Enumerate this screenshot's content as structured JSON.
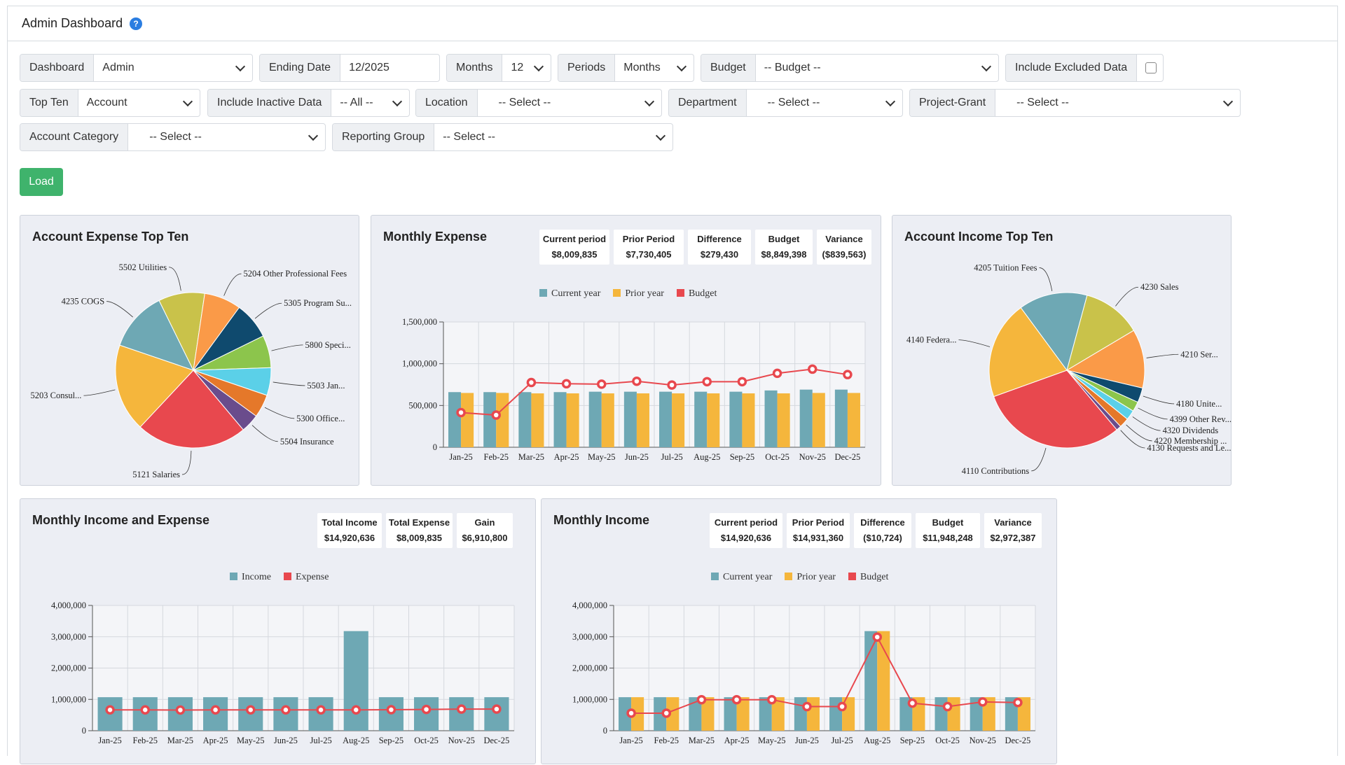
{
  "header": {
    "title": "Admin Dashboard",
    "help_icon": "?"
  },
  "filters": {
    "dashboard": {
      "label": "Dashboard",
      "value": "Admin"
    },
    "ending_date": {
      "label": "Ending Date",
      "value": "12/2025"
    },
    "months": {
      "label": "Months",
      "value": "12"
    },
    "periods": {
      "label": "Periods",
      "value": "Months"
    },
    "budget": {
      "label": "Budget",
      "value": "-- Budget --"
    },
    "include_excluded": {
      "label": "Include Excluded Data",
      "checked": false
    },
    "top_ten": {
      "label": "Top Ten",
      "value": "Account"
    },
    "include_inactive": {
      "label": "Include Inactive Data",
      "value": "-- All --"
    },
    "location": {
      "label": "Location",
      "value": "-- Select --"
    },
    "department": {
      "label": "Department",
      "value": "-- Select --"
    },
    "project_grant": {
      "label": "Project-Grant",
      "value": "-- Select --"
    },
    "account_category": {
      "label": "Account Category",
      "value": "-- Select --"
    },
    "reporting_group": {
      "label": "Reporting Group",
      "value": "-- Select --"
    }
  },
  "load_button": "Load",
  "colors": {
    "teal": "#6ea8b4",
    "orange": "#f5b63c",
    "red": "#e8484e",
    "green_button": "#3fb36c"
  },
  "cards": {
    "expense_top_ten": {
      "title": "Account Expense Top Ten"
    },
    "monthly_expense": {
      "title": "Monthly Expense",
      "stats": [
        {
          "label": "Current period",
          "value": "$8,009,835"
        },
        {
          "label": "Prior Period",
          "value": "$7,730,405"
        },
        {
          "label": "Difference",
          "value": "$279,430"
        },
        {
          "label": "Budget",
          "value": "$8,849,398"
        },
        {
          "label": "Variance",
          "value": "($839,563)"
        }
      ],
      "legend": [
        "Current year",
        "Prior year",
        "Budget"
      ]
    },
    "income_top_ten": {
      "title": "Account Income Top Ten"
    },
    "income_and_expense": {
      "title": "Monthly Income and Expense",
      "stats": [
        {
          "label": "Total Income",
          "value": "$14,920,636"
        },
        {
          "label": "Total Expense",
          "value": "$8,009,835"
        },
        {
          "label": "Gain",
          "value": "$6,910,800"
        }
      ],
      "legend": [
        "Income",
        "Expense"
      ]
    },
    "monthly_income": {
      "title": "Monthly Income",
      "stats": [
        {
          "label": "Current period",
          "value": "$14,920,636"
        },
        {
          "label": "Prior Period",
          "value": "$14,931,360"
        },
        {
          "label": "Difference",
          "value": "($10,724)"
        },
        {
          "label": "Budget",
          "value": "$11,948,248"
        },
        {
          "label": "Variance",
          "value": "$2,972,387"
        }
      ],
      "legend": [
        "Current year",
        "Prior year",
        "Budget"
      ]
    }
  },
  "chart_data": [
    {
      "id": "expense_pie",
      "type": "pie",
      "labels": [
        "5121 Salaries",
        "5203 Consul...",
        "4235 COGS",
        "5502 Utilities",
        "5204 Other Professional Fees",
        "5305 Program Su...",
        "5800 Speci...",
        "5503 Jan...",
        "5300 Office...",
        "5504 Insurance"
      ],
      "values": [
        24,
        19,
        13,
        10,
        8,
        8,
        7,
        6,
        5,
        4
      ],
      "colors": [
        "#e8484e",
        "#f5b63c",
        "#6ea8b4",
        "#c9c24a",
        "#fa9a48",
        "#0f4a6e",
        "#8cc54c",
        "#5bd0e8",
        "#e5782a",
        "#6a4c8c"
      ]
    },
    {
      "id": "monthly_expense",
      "type": "bar",
      "categories": [
        "Jan-25",
        "Feb-25",
        "Mar-25",
        "Apr-25",
        "May-25",
        "Jun-25",
        "Jul-25",
        "Aug-25",
        "Sep-25",
        "Oct-25",
        "Nov-25",
        "Dec-25"
      ],
      "series": [
        {
          "name": "Current year",
          "values": [
            660000,
            660000,
            660000,
            660000,
            665000,
            665000,
            665000,
            665000,
            665000,
            680000,
            690000,
            690000
          ]
        },
        {
          "name": "Prior year",
          "values": [
            650000,
            650000,
            645000,
            645000,
            645000,
            645000,
            645000,
            645000,
            645000,
            645000,
            650000,
            650000
          ]
        },
        {
          "name": "Budget",
          "type": "line",
          "values": [
            415000,
            385000,
            775000,
            760000,
            755000,
            790000,
            745000,
            785000,
            785000,
            885000,
            935000,
            870000
          ]
        }
      ],
      "yticks": [
        "0",
        "500,000",
        "1,000,000",
        "1,500,000"
      ],
      "ylim": [
        0,
        1500000
      ]
    },
    {
      "id": "income_pie",
      "type": "pie",
      "labels": [
        "4110 Contributions",
        "4140 Federa...",
        "4205 Tuition Fees",
        "4230 Sales",
        "4210 Ser...",
        "4180 Unite...",
        "4399 Other Rev...",
        "4320 Dividends",
        "4220 Membership ...",
        "4130 Requests and Le..."
      ],
      "values": [
        30,
        20,
        14,
        12,
        12,
        3,
        2,
        2,
        2,
        1
      ],
      "colors": [
        "#e8484e",
        "#f5b63c",
        "#6ea8b4",
        "#c9c24a",
        "#fa9a48",
        "#0f4a6e",
        "#8cc54c",
        "#5bd0e8",
        "#e5782a",
        "#6a4c8c"
      ]
    },
    {
      "id": "income_and_expense",
      "type": "bar",
      "categories": [
        "Jan-25",
        "Feb-25",
        "Mar-25",
        "Apr-25",
        "May-25",
        "Jun-25",
        "Jul-25",
        "Aug-25",
        "Sep-25",
        "Oct-25",
        "Nov-25",
        "Dec-25"
      ],
      "series": [
        {
          "name": "Income",
          "values": [
            1070000,
            1070000,
            1070000,
            1070000,
            1070000,
            1070000,
            1070000,
            3180000,
            1070000,
            1070000,
            1070000,
            1070000
          ]
        },
        {
          "name": "Expense",
          "type": "line",
          "values": [
            665000,
            665000,
            660000,
            665000,
            665000,
            665000,
            665000,
            665000,
            670000,
            680000,
            690000,
            690000
          ]
        }
      ],
      "yticks": [
        "0",
        "1,000,000",
        "2,000,000",
        "3,000,000",
        "4,000,000"
      ],
      "ylim": [
        0,
        4000000
      ]
    },
    {
      "id": "monthly_income",
      "type": "bar",
      "categories": [
        "Jan-25",
        "Feb-25",
        "Mar-25",
        "Apr-25",
        "May-25",
        "Jun-25",
        "Jul-25",
        "Aug-25",
        "Sep-25",
        "Oct-25",
        "Nov-25",
        "Dec-25"
      ],
      "series": [
        {
          "name": "Current year",
          "values": [
            1070000,
            1070000,
            1070000,
            1070000,
            1070000,
            1070000,
            1070000,
            3180000,
            1070000,
            1070000,
            1070000,
            1070000
          ]
        },
        {
          "name": "Prior year",
          "values": [
            1070000,
            1070000,
            1070000,
            1070000,
            1070000,
            1070000,
            1070000,
            3180000,
            1070000,
            1070000,
            1070000,
            1070000
          ]
        },
        {
          "name": "Budget",
          "type": "line",
          "values": [
            560000,
            560000,
            990000,
            990000,
            990000,
            770000,
            770000,
            2990000,
            880000,
            770000,
            920000,
            900000
          ]
        }
      ],
      "yticks": [
        "0",
        "1,000,000",
        "2,000,000",
        "3,000,000",
        "4,000,000"
      ],
      "ylim": [
        0,
        4000000
      ]
    }
  ]
}
